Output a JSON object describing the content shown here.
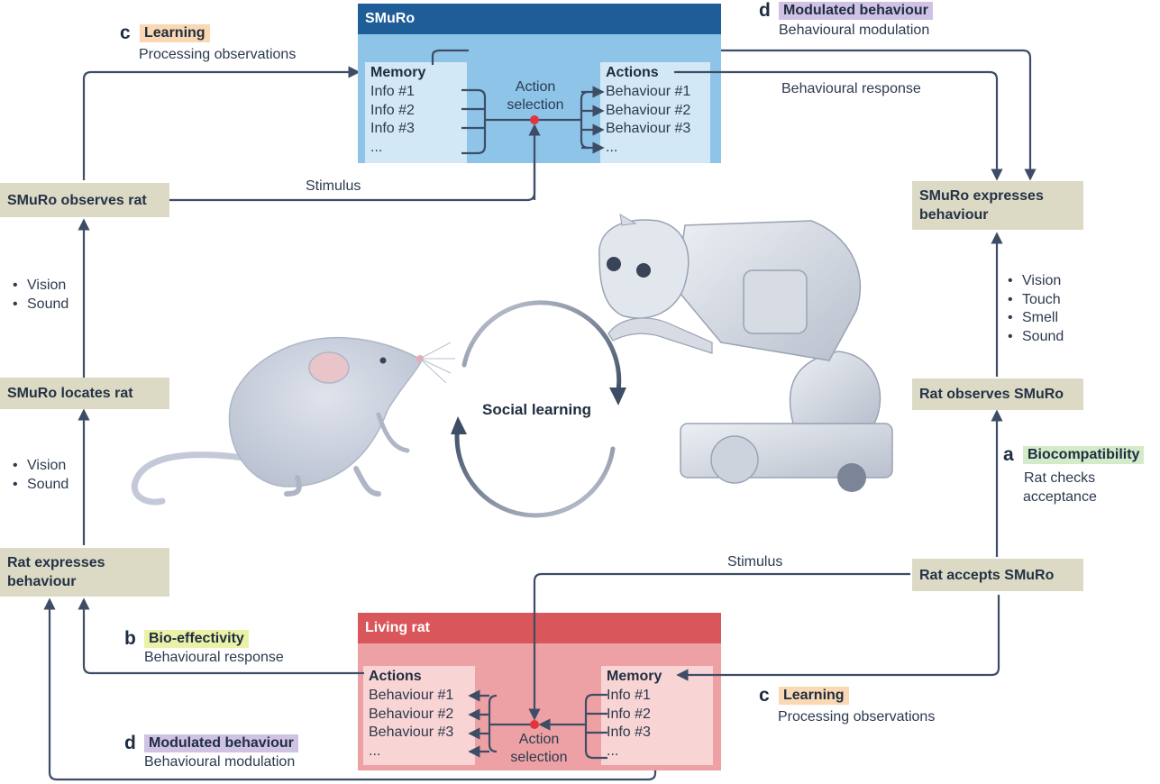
{
  "colors": {
    "node_fill": "#dcdac4",
    "arrow": "#3e4d66",
    "smuro_header": "#1f5d99",
    "smuro_panel": "#8ec4e8",
    "smuro_sub": "#d2e8f7",
    "rat_header": "#d9565a",
    "rat_panel": "#eea1a4",
    "rat_sub": "#f9d4d4",
    "learning_chip": "#f9d8b3",
    "modulated_chip": "#cfc2e3",
    "bioeff_chip": "#eaf2a7",
    "biocompat_chip": "#d3ebc8",
    "selection_dot": "#e0353b"
  },
  "nodes": {
    "smuro_observes_rat": "SMuRo observes rat",
    "smuro_locates_rat": "SMuRo locates rat",
    "rat_expresses_behaviour": "Rat expresses behaviour",
    "smuro_expresses_behaviour": "SMuRo expresses behaviour",
    "rat_observes_smuro": "Rat observes SMuRo",
    "rat_accepts_smuro": "Rat accepts SMuRo"
  },
  "senses": {
    "left_upper": [
      "Vision",
      "Sound"
    ],
    "left_lower": [
      "Vision",
      "Sound"
    ],
    "right": [
      "Vision",
      "Touch",
      "Smell",
      "Sound"
    ]
  },
  "tags": {
    "learning_top": {
      "letter": "c",
      "label": "Learning",
      "desc": "Processing observations"
    },
    "modulated_top": {
      "letter": "d",
      "label": "Modulated behaviour",
      "desc": "Behavioural modulation"
    },
    "biocompat": {
      "letter": "a",
      "label": "Biocompatibility",
      "desc_line1": "Rat checks",
      "desc_line2": "acceptance"
    },
    "bioeff": {
      "letter": "b",
      "label": "Bio-effectivity",
      "desc": "Behavioural response"
    },
    "modulated_bottom": {
      "letter": "d",
      "label": "Modulated behaviour",
      "desc": "Behavioural modulation"
    },
    "learning_bottom": {
      "letter": "c",
      "label": "Learning",
      "desc": "Processing observations"
    }
  },
  "edge_labels": {
    "stimulus_top": "Stimulus",
    "behavioural_response_top": "Behavioural response",
    "stimulus_bottom": "Stimulus"
  },
  "smuro_panel": {
    "title": "SMuRo",
    "memory": {
      "header": "Memory",
      "items": [
        "Info #1",
        "Info #2",
        "Info #3",
        "..."
      ]
    },
    "actions": {
      "header": "Actions",
      "items": [
        "Behaviour #1",
        "Behaviour #2",
        "Behaviour #3",
        "..."
      ]
    },
    "selection_line1": "Action",
    "selection_line2": "selection"
  },
  "rat_panel": {
    "title": "Living rat",
    "actions": {
      "header": "Actions",
      "items": [
        "Behaviour #1",
        "Behaviour #2",
        "Behaviour #3",
        "..."
      ]
    },
    "memory": {
      "header": "Memory",
      "items": [
        "Info #1",
        "Info #2",
        "Info #3",
        "..."
      ]
    },
    "selection_line1": "Action",
    "selection_line2": "selection"
  },
  "center": {
    "label": "Social learning"
  },
  "illustrations": {
    "rat": "rat-illustration",
    "robot": "robot-rat-illustration"
  }
}
